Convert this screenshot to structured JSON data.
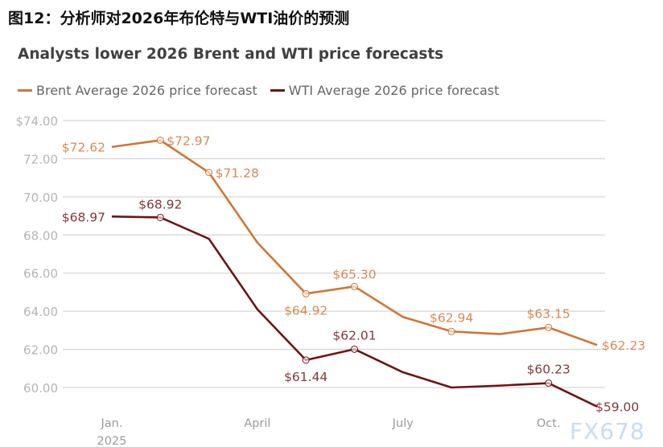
{
  "figure_title": "图12：分析师对2026年布伦特与WTI油价的预测",
  "watermark": "FX678",
  "chart_data": {
    "type": "line",
    "title": "Analysts lower 2026 Brent and WTI price forecasts",
    "xlabel": "",
    "ylabel": "",
    "x": [
      "Jan. 2025",
      "Feb. 2025",
      "Mar. 2025",
      "Apr. 2025",
      "May 2025",
      "Jun. 2025",
      "Jul. 2025",
      "Aug. 2025",
      "Sep. 2025",
      "Oct. 2025",
      "Nov. 2025"
    ],
    "x_tick_labels": [
      {
        "index": 0,
        "lines": [
          "Jan.",
          "2025"
        ]
      },
      {
        "index": 3,
        "lines": [
          "April"
        ]
      },
      {
        "index": 6,
        "lines": [
          "July"
        ]
      },
      {
        "index": 9,
        "lines": [
          "Oct."
        ]
      }
    ],
    "ylim": [
      60,
      74
    ],
    "y_ticks": [
      60,
      62,
      64,
      66,
      68,
      70,
      72,
      74
    ],
    "y_tick_labels": [
      "60.00",
      "62.00",
      "64.00",
      "66.00",
      "68.00",
      "70.00",
      "72.00",
      "$74.00"
    ],
    "grid": "horizontal",
    "legend_position": "top-left",
    "series": [
      {
        "name": "Brent Average 2026 price forecast",
        "color": "#d07636",
        "values": [
          72.62,
          72.97,
          71.28,
          67.6,
          64.92,
          65.3,
          63.7,
          62.94,
          62.8,
          63.15,
          62.23
        ],
        "data_labels": [
          "$72.62",
          "$72.97",
          "$71.28",
          null,
          "$64.92",
          "$65.30",
          null,
          "$62.94",
          null,
          "$63.15",
          "$62.23"
        ],
        "markers": [
          false,
          true,
          true,
          false,
          true,
          true,
          false,
          true,
          false,
          true,
          false
        ]
      },
      {
        "name": "WTI Average 2026 price forecast",
        "color": "#6e1416",
        "values": [
          68.97,
          68.92,
          67.8,
          64.1,
          61.44,
          62.01,
          60.8,
          60.0,
          60.1,
          60.23,
          59.0
        ],
        "data_labels": [
          "$68.97",
          "$68.92",
          null,
          null,
          "$61.44",
          "$62.01",
          null,
          null,
          null,
          "$60.23",
          "$59.00"
        ],
        "markers": [
          false,
          true,
          false,
          false,
          true,
          true,
          false,
          false,
          false,
          true,
          false
        ]
      }
    ]
  }
}
